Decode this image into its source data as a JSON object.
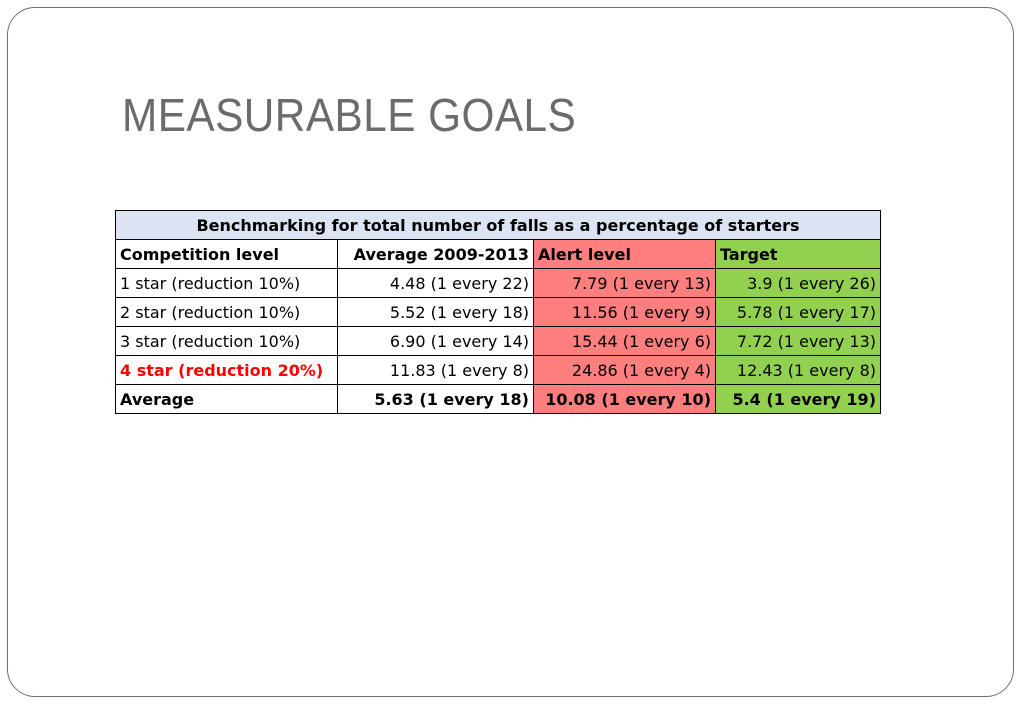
{
  "slide": {
    "title": "MEASURABLE GOALS"
  },
  "table": {
    "caption": "Benchmarking for total number of falls as a percentage of starters",
    "headers": [
      "Competition level",
      "Average 2009-2013",
      "Alert level",
      "Target"
    ],
    "rows": [
      [
        "1 star (reduction 10%)",
        "4.48 (1 every 22)",
        "7.79 (1 every 13)",
        "3.9 (1 every 26)"
      ],
      [
        "2 star (reduction 10%)",
        "5.52 (1 every 18)",
        "11.56 (1 every 9)",
        "5.78 (1 every 17)"
      ],
      [
        "3 star (reduction 10%)",
        "6.90 (1 every 14)",
        "15.44 (1 every 6)",
        "7.72 (1 every 13)"
      ],
      [
        "4 star (reduction 20%)",
        "11.83 (1 every 8)",
        "24.86 (1 every 4)",
        "12.43 (1 every 8)"
      ],
      [
        "Average",
        "5.63 (1 every 18)",
        "10.08 (1 every 10)",
        "5.4 (1 every 19)"
      ]
    ],
    "colors": {
      "caption_bg": "#dce3f3",
      "alert_bg": "#ff7f7f",
      "target_bg": "#92d050",
      "highlight_text": "#ff0000"
    }
  }
}
